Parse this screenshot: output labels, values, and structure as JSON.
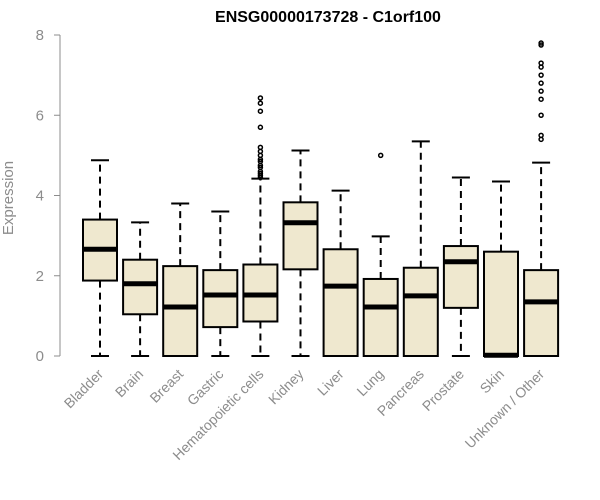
{
  "chart_data": {
    "type": "box",
    "title": "ENSG00000173728 - C1orf100",
    "ylabel": "Expression",
    "ylim": [
      0,
      8
    ],
    "yticks": [
      0,
      2,
      4,
      6,
      8
    ],
    "grid": false,
    "box_fill": "#efe8cf",
    "categories": [
      "Bladder",
      "Brain",
      "Breast",
      "Gastric",
      "Hematopoietic cells",
      "Kidney",
      "Liver",
      "Lung",
      "Pancreas",
      "Prostate",
      "Skin",
      "Unknown / Other"
    ],
    "boxes": [
      {
        "min": 0.0,
        "q1": 1.88,
        "median": 2.66,
        "q3": 3.4,
        "max": 4.88,
        "outliers": []
      },
      {
        "min": 0.0,
        "q1": 1.04,
        "median": 1.8,
        "q3": 2.4,
        "max": 3.33,
        "outliers": []
      },
      {
        "min": 0.0,
        "q1": 0.0,
        "median": 1.22,
        "q3": 2.24,
        "max": 3.8,
        "outliers": []
      },
      {
        "min": 0.0,
        "q1": 0.72,
        "median": 1.52,
        "q3": 2.14,
        "max": 3.6,
        "outliers": []
      },
      {
        "min": 0.0,
        "q1": 0.86,
        "median": 1.52,
        "q3": 2.28,
        "max": 4.42,
        "outliers": [
          4.45,
          4.5,
          4.55,
          4.6,
          4.7,
          4.75,
          4.85,
          4.9,
          5.0,
          5.1,
          5.2,
          5.7,
          6.1,
          6.3,
          6.43
        ]
      },
      {
        "min": 0.0,
        "q1": 2.16,
        "median": 3.32,
        "q3": 3.83,
        "max": 5.12,
        "outliers": []
      },
      {
        "min": 0.0,
        "q1": 0.0,
        "median": 1.74,
        "q3": 2.66,
        "max": 4.12,
        "outliers": []
      },
      {
        "min": 0.0,
        "q1": 0.0,
        "median": 1.22,
        "q3": 1.92,
        "max": 2.98,
        "outliers": [
          5.0
        ]
      },
      {
        "min": 0.0,
        "q1": 0.0,
        "median": 1.5,
        "q3": 2.2,
        "max": 5.35,
        "outliers": []
      },
      {
        "min": 0.0,
        "q1": 1.2,
        "median": 2.35,
        "q3": 2.74,
        "max": 4.45,
        "outliers": []
      },
      {
        "min": 0.0,
        "q1": 0.0,
        "median": 0.02,
        "q3": 2.6,
        "max": 4.35,
        "outliers": []
      },
      {
        "min": 0.0,
        "q1": 0.0,
        "median": 1.35,
        "q3": 2.14,
        "max": 4.82,
        "outliers": [
          5.4,
          5.5,
          6.0,
          6.4,
          6.6,
          6.8,
          7.0,
          7.2,
          7.3,
          7.75,
          7.8
        ]
      }
    ]
  }
}
